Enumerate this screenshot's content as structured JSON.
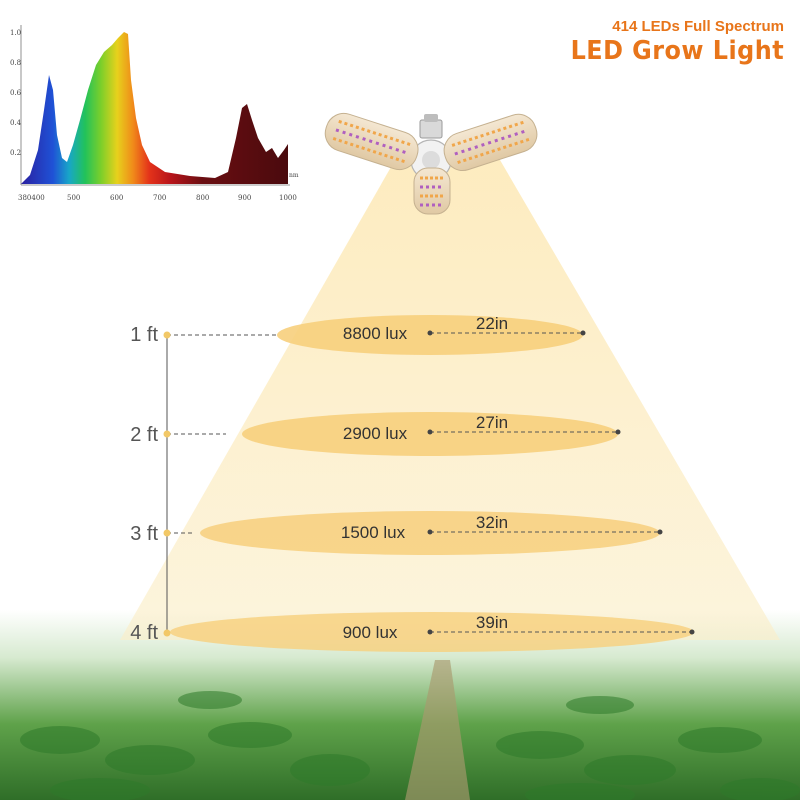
{
  "header": {
    "line1": "414 LEDs Full Spectrum",
    "line2": "LED Grow Light"
  },
  "spectrum": {
    "y_ticks": [
      "1.0",
      "0.8",
      "0.6",
      "0.4",
      "0.2"
    ],
    "x_ticks": [
      "380400",
      "500",
      "600",
      "700",
      "800",
      "900",
      "1000"
    ],
    "unit": "nm"
  },
  "levels": [
    {
      "height": "1 ft",
      "lux": "8800 lux",
      "width": "22in"
    },
    {
      "height": "2 ft",
      "lux": "2900 lux",
      "width": "27in"
    },
    {
      "height": "3 ft",
      "lux": "1500 lux",
      "width": "32in"
    },
    {
      "height": "4 ft",
      "lux": "900 lux",
      "width": "39in"
    }
  ],
  "colors": {
    "accent": "#e8751a",
    "beam": "#fbe3a8",
    "ellipse": "#f7cf7c",
    "leaf": "#3f8a32"
  }
}
